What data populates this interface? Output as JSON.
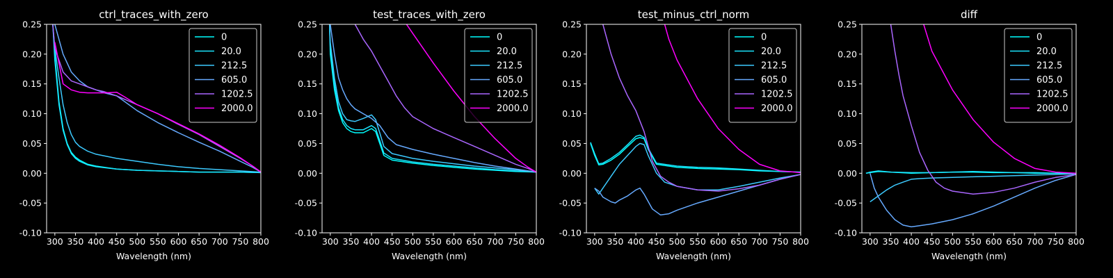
{
  "chart_data": [
    {
      "type": "line",
      "title": "ctrl_traces_with_zero",
      "xlabel": "Wavelength (nm)",
      "ylabel": "",
      "xlim": [
        280,
        800
      ],
      "ylim": [
        -0.1,
        0.25
      ],
      "xticks": [
        300,
        350,
        400,
        450,
        500,
        550,
        600,
        650,
        700,
        750,
        800
      ],
      "yticks": [
        -0.1,
        -0.05,
        0.0,
        0.05,
        0.1,
        0.15,
        0.2,
        0.25
      ],
      "legend_position": "top-right",
      "grid": false,
      "series": [
        {
          "name": "0",
          "color": "#00ffff",
          "x": [
            295,
            300,
            310,
            320,
            330,
            340,
            350,
            360,
            380,
            400,
            450,
            500,
            550,
            600,
            650,
            700,
            750,
            800
          ],
          "y": [
            0.25,
            0.2,
            0.12,
            0.075,
            0.05,
            0.035,
            0.027,
            0.022,
            0.015,
            0.012,
            0.007,
            0.005,
            0.004,
            0.003,
            0.002,
            0.002,
            0.002,
            0.001
          ]
        },
        {
          "name": "20.0",
          "color": "#1ae5ff",
          "x": [
            295,
            300,
            310,
            320,
            330,
            340,
            350,
            360,
            380,
            400,
            450,
            500,
            550,
            600,
            650,
            700,
            750,
            800
          ],
          "y": [
            0.25,
            0.19,
            0.115,
            0.072,
            0.048,
            0.033,
            0.025,
            0.02,
            0.014,
            0.011,
            0.007,
            0.005,
            0.004,
            0.003,
            0.002,
            0.002,
            0.002,
            0.001
          ]
        },
        {
          "name": "212.5",
          "color": "#3ccaff",
          "x": [
            295,
            300,
            310,
            320,
            330,
            340,
            350,
            360,
            380,
            400,
            450,
            500,
            550,
            600,
            650,
            700,
            750,
            800
          ],
          "y": [
            0.25,
            0.21,
            0.16,
            0.115,
            0.085,
            0.065,
            0.052,
            0.045,
            0.037,
            0.032,
            0.025,
            0.02,
            0.015,
            0.011,
            0.008,
            0.006,
            0.004,
            0.002
          ]
        },
        {
          "name": "605.0",
          "color": "#66aaff",
          "x": [
            300,
            320,
            340,
            360,
            380,
            400,
            420,
            450,
            500,
            550,
            600,
            650,
            700,
            750,
            780,
            800
          ],
          "y": [
            0.25,
            0.2,
            0.17,
            0.155,
            0.145,
            0.14,
            0.135,
            0.13,
            0.105,
            0.085,
            0.068,
            0.052,
            0.037,
            0.02,
            0.01,
            0.002
          ]
        },
        {
          "name": "1202.5",
          "color": "#aa66ff",
          "x": [
            295,
            300,
            320,
            340,
            360,
            380,
            400,
            420,
            450,
            500,
            550,
            600,
            650,
            700,
            750,
            780,
            800
          ],
          "y": [
            0.25,
            0.21,
            0.17,
            0.155,
            0.15,
            0.145,
            0.14,
            0.137,
            0.13,
            0.115,
            0.1,
            0.082,
            0.065,
            0.045,
            0.025,
            0.012,
            0.002
          ]
        },
        {
          "name": "2000.0",
          "color": "#ff00ff",
          "x": [
            300,
            320,
            340,
            360,
            380,
            400,
            420,
            450,
            470,
            500,
            550,
            600,
            650,
            700,
            750,
            780,
            800
          ],
          "y": [
            0.22,
            0.15,
            0.14,
            0.136,
            0.135,
            0.135,
            0.135,
            0.136,
            0.128,
            0.115,
            0.1,
            0.083,
            0.066,
            0.047,
            0.026,
            0.012,
            0.002
          ]
        }
      ]
    },
    {
      "type": "line",
      "title": "test_traces_with_zero",
      "xlabel": "Wavelength (nm)",
      "ylabel": "",
      "xlim": [
        280,
        800
      ],
      "ylim": [
        -0.1,
        0.25
      ],
      "xticks": [
        300,
        350,
        400,
        450,
        500,
        550,
        600,
        650,
        700,
        750,
        800
      ],
      "yticks": [
        -0.1,
        -0.05,
        0.0,
        0.05,
        0.1,
        0.15,
        0.2,
        0.25
      ],
      "legend_position": "top-right",
      "grid": false,
      "series": [
        {
          "name": "0",
          "color": "#00ffff",
          "x": [
            298,
            300,
            310,
            320,
            330,
            340,
            350,
            360,
            380,
            400,
            410,
            420,
            430,
            450,
            500,
            550,
            600,
            650,
            700,
            750,
            800
          ],
          "y": [
            0.25,
            0.2,
            0.14,
            0.105,
            0.085,
            0.075,
            0.07,
            0.068,
            0.068,
            0.075,
            0.07,
            0.05,
            0.03,
            0.022,
            0.017,
            0.013,
            0.01,
            0.007,
            0.005,
            0.003,
            0.002
          ]
        },
        {
          "name": "20.0",
          "color": "#1ae5ff",
          "x": [
            298,
            300,
            310,
            320,
            330,
            340,
            350,
            360,
            380,
            400,
            410,
            420,
            430,
            450,
            500,
            550,
            600,
            650,
            700,
            750,
            800
          ],
          "y": [
            0.25,
            0.21,
            0.15,
            0.11,
            0.09,
            0.08,
            0.075,
            0.073,
            0.073,
            0.08,
            0.075,
            0.055,
            0.034,
            0.025,
            0.019,
            0.015,
            0.012,
            0.009,
            0.006,
            0.004,
            0.002
          ]
        },
        {
          "name": "212.5",
          "color": "#3ccaff",
          "x": [
            298,
            300,
            310,
            320,
            330,
            340,
            350,
            360,
            380,
            400,
            410,
            420,
            430,
            450,
            500,
            550,
            600,
            650,
            700,
            750,
            800
          ],
          "y": [
            0.25,
            0.22,
            0.16,
            0.12,
            0.1,
            0.09,
            0.088,
            0.087,
            0.092,
            0.098,
            0.09,
            0.068,
            0.045,
            0.033,
            0.025,
            0.02,
            0.016,
            0.012,
            0.009,
            0.006,
            0.002
          ]
        },
        {
          "name": "605.0",
          "color": "#66aaff",
          "x": [
            300,
            310,
            320,
            330,
            340,
            350,
            360,
            380,
            400,
            420,
            440,
            460,
            500,
            550,
            600,
            650,
            700,
            750,
            800
          ],
          "y": [
            0.25,
            0.2,
            0.16,
            0.14,
            0.125,
            0.115,
            0.108,
            0.1,
            0.092,
            0.08,
            0.06,
            0.048,
            0.04,
            0.032,
            0.025,
            0.018,
            0.012,
            0.007,
            0.002
          ]
        },
        {
          "name": "1202.5",
          "color": "#aa66ff",
          "x": [
            360,
            380,
            400,
            420,
            440,
            460,
            480,
            500,
            550,
            600,
            650,
            700,
            750,
            780,
            800
          ],
          "y": [
            0.25,
            0.225,
            0.205,
            0.18,
            0.155,
            0.13,
            0.11,
            0.095,
            0.075,
            0.06,
            0.045,
            0.03,
            0.015,
            0.008,
            0.002
          ]
        },
        {
          "name": "2000.0",
          "color": "#ff00ff",
          "x": [
            485,
            500,
            550,
            600,
            650,
            700,
            750,
            780,
            800
          ],
          "y": [
            0.25,
            0.235,
            0.185,
            0.138,
            0.095,
            0.058,
            0.025,
            0.01,
            0.002
          ]
        }
      ]
    },
    {
      "type": "line",
      "title": "test_minus_ctrl_norm",
      "xlabel": "Wavelength (nm)",
      "ylabel": "",
      "xlim": [
        280,
        800
      ],
      "ylim": [
        -0.1,
        0.25
      ],
      "xticks": [
        300,
        350,
        400,
        450,
        500,
        550,
        600,
        650,
        700,
        750,
        800
      ],
      "yticks": [
        -0.1,
        -0.05,
        0.0,
        0.05,
        0.1,
        0.15,
        0.2,
        0.25
      ],
      "legend_position": "top-right",
      "grid": false,
      "series": [
        {
          "name": "0",
          "color": "#00ffff",
          "x": [
            290,
            300,
            310,
            320,
            340,
            360,
            380,
            400,
            410,
            420,
            430,
            450,
            500,
            550,
            600,
            650,
            700,
            750,
            800
          ],
          "y": [
            0.05,
            0.03,
            0.014,
            0.015,
            0.022,
            0.032,
            0.045,
            0.058,
            0.06,
            0.058,
            0.04,
            0.015,
            0.01,
            0.008,
            0.007,
            0.006,
            0.004,
            0.003,
            0.002
          ]
        },
        {
          "name": "20.0",
          "color": "#1ae5ff",
          "x": [
            290,
            300,
            310,
            320,
            340,
            360,
            380,
            400,
            410,
            420,
            430,
            450,
            500,
            550,
            600,
            650,
            700,
            750,
            800
          ],
          "y": [
            0.052,
            0.033,
            0.016,
            0.017,
            0.025,
            0.035,
            0.048,
            0.062,
            0.064,
            0.06,
            0.042,
            0.017,
            0.012,
            0.01,
            0.009,
            0.007,
            0.005,
            0.003,
            0.002
          ]
        },
        {
          "name": "212.5",
          "color": "#3ccaff",
          "x": [
            300,
            310,
            320,
            340,
            360,
            380,
            400,
            410,
            420,
            430,
            450,
            470,
            500,
            550,
            600,
            650,
            700,
            750,
            800
          ],
          "y": [
            -0.025,
            -0.035,
            -0.025,
            -0.005,
            0.015,
            0.03,
            0.045,
            0.05,
            0.048,
            0.03,
            0.0,
            -0.015,
            -0.022,
            -0.028,
            -0.028,
            -0.022,
            -0.015,
            -0.008,
            -0.002
          ]
        },
        {
          "name": "605.0",
          "color": "#66aaff",
          "x": [
            300,
            310,
            320,
            340,
            350,
            360,
            380,
            400,
            410,
            420,
            440,
            460,
            480,
            500,
            550,
            600,
            650,
            700,
            750,
            800
          ],
          "y": [
            -0.025,
            -0.03,
            -0.04,
            -0.048,
            -0.05,
            -0.045,
            -0.038,
            -0.028,
            -0.025,
            -0.035,
            -0.06,
            -0.07,
            -0.068,
            -0.062,
            -0.05,
            -0.04,
            -0.03,
            -0.02,
            -0.01,
            -0.002
          ]
        },
        {
          "name": "1202.5",
          "color": "#aa66ff",
          "x": [
            320,
            340,
            360,
            380,
            400,
            420,
            440,
            460,
            480,
            500,
            550,
            600,
            650,
            700,
            750,
            800
          ],
          "y": [
            0.25,
            0.2,
            0.16,
            0.13,
            0.105,
            0.07,
            0.02,
            -0.005,
            -0.015,
            -0.022,
            -0.028,
            -0.03,
            -0.026,
            -0.02,
            -0.01,
            -0.002
          ]
        },
        {
          "name": "2000.0",
          "color": "#ff00ff",
          "x": [
            470,
            480,
            500,
            550,
            600,
            650,
            700,
            750,
            800
          ],
          "y": [
            0.25,
            0.225,
            0.19,
            0.125,
            0.075,
            0.04,
            0.015,
            0.004,
            0.001
          ]
        }
      ]
    },
    {
      "type": "line",
      "title": "diff",
      "xlabel": "Wavelength (nm)",
      "ylabel": "",
      "xlim": [
        280,
        800
      ],
      "ylim": [
        -0.1,
        0.25
      ],
      "xticks": [
        300,
        350,
        400,
        450,
        500,
        550,
        600,
        650,
        700,
        750,
        800
      ],
      "yticks": [
        -0.1,
        -0.05,
        0.0,
        0.05,
        0.1,
        0.15,
        0.2,
        0.25
      ],
      "legend_position": "top-right",
      "grid": false,
      "series": [
        {
          "name": "0",
          "color": "#00ffff",
          "x": [
            290,
            300,
            320,
            350,
            400,
            450,
            500,
            550,
            600,
            650,
            700,
            750,
            800
          ],
          "y": [
            0.0,
            0.001,
            0.003,
            0.002,
            0.0,
            0.001,
            0.002,
            0.002,
            0.001,
            0.001,
            0.0,
            0.0,
            0.0
          ]
        },
        {
          "name": "20.0",
          "color": "#1ae5ff",
          "x": [
            290,
            300,
            320,
            350,
            400,
            450,
            500,
            550,
            600,
            650,
            700,
            750,
            800
          ],
          "y": [
            0.0,
            0.002,
            0.004,
            0.002,
            0.001,
            0.001,
            0.002,
            0.003,
            0.002,
            0.001,
            0.001,
            0.0,
            0.0
          ]
        },
        {
          "name": "212.5",
          "color": "#3ccaff",
          "x": [
            300,
            320,
            340,
            360,
            380,
            400,
            420,
            450,
            500,
            550,
            600,
            650,
            700,
            750,
            800
          ],
          "y": [
            -0.048,
            -0.038,
            -0.028,
            -0.02,
            -0.015,
            -0.01,
            -0.009,
            -0.008,
            -0.007,
            -0.006,
            -0.005,
            -0.004,
            -0.003,
            -0.002,
            -0.001
          ]
        },
        {
          "name": "605.0",
          "color": "#66aaff",
          "x": [
            300,
            310,
            320,
            340,
            360,
            380,
            400,
            420,
            450,
            500,
            550,
            600,
            650,
            700,
            750,
            800
          ],
          "y": [
            0.0,
            -0.025,
            -0.04,
            -0.062,
            -0.078,
            -0.087,
            -0.09,
            -0.088,
            -0.085,
            -0.078,
            -0.068,
            -0.055,
            -0.04,
            -0.025,
            -0.012,
            -0.002
          ]
        },
        {
          "name": "1202.5",
          "color": "#aa66ff",
          "x": [
            350,
            360,
            370,
            380,
            400,
            420,
            440,
            460,
            480,
            500,
            550,
            600,
            650,
            700,
            750,
            800
          ],
          "y": [
            0.25,
            0.205,
            0.165,
            0.13,
            0.08,
            0.035,
            0.005,
            -0.015,
            -0.025,
            -0.03,
            -0.035,
            -0.032,
            -0.025,
            -0.015,
            -0.007,
            -0.002
          ]
        },
        {
          "name": "2000.0",
          "color": "#ff00ff",
          "x": [
            430,
            450,
            500,
            550,
            600,
            650,
            700,
            750,
            800
          ],
          "y": [
            0.25,
            0.205,
            0.14,
            0.09,
            0.052,
            0.025,
            0.008,
            0.002,
            0.0
          ]
        }
      ]
    }
  ]
}
